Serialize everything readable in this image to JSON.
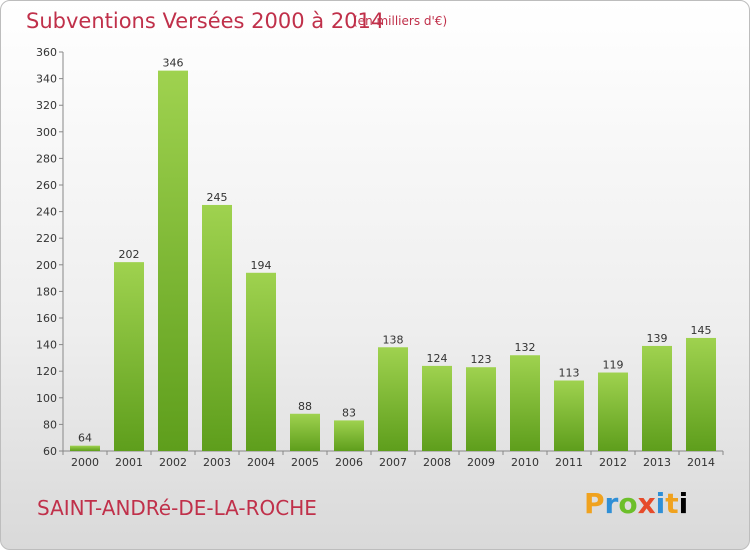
{
  "header": {
    "title": "Subventions Versées 2000 à 2014",
    "subtitle": "(en milliers d'€)"
  },
  "footer": {
    "commune": "SAINT-ANDRé-DE-LA-ROCHE",
    "logo_text": "Proxiti"
  },
  "colors": {
    "title": "#c0304a",
    "bar_top": "#9fd24f",
    "bar_bottom": "#5e9e1c"
  },
  "chart_data": {
    "type": "bar",
    "title": "Subventions Versées 2000 à 2014",
    "subtitle": "(en milliers d'€)",
    "categories": [
      "2000",
      "2001",
      "2002",
      "2003",
      "2004",
      "2005",
      "2006",
      "2007",
      "2008",
      "2009",
      "2010",
      "2011",
      "2012",
      "2013",
      "2014"
    ],
    "values": [
      64,
      202,
      346,
      245,
      194,
      88,
      83,
      138,
      124,
      123,
      132,
      113,
      119,
      139,
      145
    ],
    "ylim": [
      60,
      360
    ],
    "yticks": [
      60,
      80,
      100,
      120,
      140,
      160,
      180,
      200,
      220,
      240,
      260,
      280,
      300,
      320,
      340,
      360
    ],
    "grid": false,
    "legend": "none"
  }
}
